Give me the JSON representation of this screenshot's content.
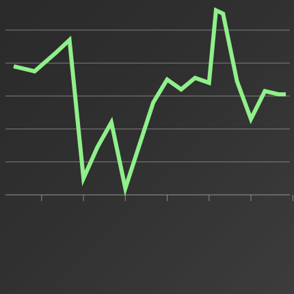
{
  "chart_data": {
    "type": "line",
    "title": "",
    "xlabel": "",
    "ylabel": "",
    "grid": true,
    "legend": "none",
    "color": "#8ff08a",
    "ylim": [
      0,
      100
    ],
    "gridlines": [
      20,
      40,
      60,
      80,
      100
    ],
    "x_ticks": [
      2,
      5,
      8,
      11,
      14,
      17,
      20
    ],
    "x": [
      0,
      1,
      1.5,
      3,
      4,
      5,
      6,
      7,
      8,
      9,
      10,
      11,
      12,
      13,
      14,
      14.5,
      15,
      16,
      17,
      18,
      19,
      19.5
    ],
    "values": [
      78,
      76,
      75,
      86,
      94,
      10,
      29,
      44,
      4,
      30,
      56,
      70,
      64,
      71,
      68,
      112,
      110,
      69,
      46,
      63,
      61,
      61
    ]
  }
}
